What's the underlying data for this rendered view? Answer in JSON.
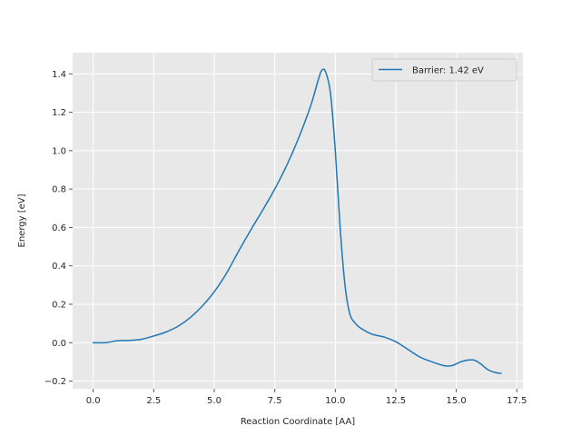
{
  "chart_data": {
    "type": "line",
    "title": "",
    "xlabel": "Reaction Coordinate [AA]",
    "ylabel": "Energy [eV]",
    "xlim": [
      -0.85,
      17.75
    ],
    "ylim": [
      -0.24,
      1.51
    ],
    "xticks": [
      0.0,
      2.5,
      5.0,
      7.5,
      10.0,
      12.5,
      15.0,
      17.5
    ],
    "xtick_labels": [
      "0.0",
      "2.5",
      "5.0",
      "7.5",
      "10.0",
      "12.5",
      "15.0",
      "17.5"
    ],
    "yticks": [
      -0.2,
      0.0,
      0.2,
      0.4,
      0.6,
      0.8,
      1.0,
      1.2,
      1.4
    ],
    "ytick_labels": [
      "−0.2",
      "0.0",
      "0.2",
      "0.4",
      "0.6",
      "0.8",
      "1.0",
      "1.2",
      "1.4"
    ],
    "grid": true,
    "legend_position": "top-right",
    "series": [
      {
        "name": "Barrier: 1.42 eV",
        "color": "#1f77b4",
        "x": [
          0.0,
          0.5,
          1.0,
          1.5,
          2.0,
          2.5,
          3.0,
          3.5,
          4.0,
          4.5,
          5.0,
          5.5,
          6.0,
          6.5,
          7.0,
          7.5,
          8.0,
          8.5,
          9.0,
          9.3,
          9.45,
          9.6,
          9.8,
          10.0,
          10.2,
          10.4,
          10.6,
          10.8,
          11.0,
          11.5,
          12.0,
          12.5,
          13.0,
          13.5,
          14.0,
          14.5,
          14.8,
          15.0,
          15.3,
          15.7,
          16.0,
          16.3,
          16.6,
          16.85
        ],
        "y": [
          0.0,
          0.0,
          0.01,
          0.012,
          0.018,
          0.035,
          0.055,
          0.085,
          0.13,
          0.19,
          0.265,
          0.36,
          0.475,
          0.585,
          0.69,
          0.8,
          0.925,
          1.07,
          1.24,
          1.37,
          1.42,
          1.41,
          1.3,
          1.0,
          0.6,
          0.3,
          0.15,
          0.105,
          0.08,
          0.045,
          0.03,
          0.005,
          -0.035,
          -0.075,
          -0.1,
          -0.12,
          -0.12,
          -0.11,
          -0.095,
          -0.09,
          -0.11,
          -0.14,
          -0.155,
          -0.16
        ]
      }
    ]
  }
}
